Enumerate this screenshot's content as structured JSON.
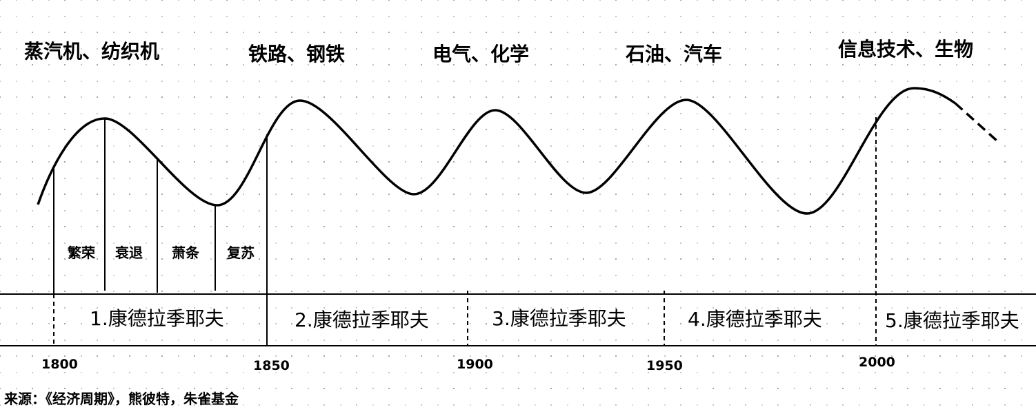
{
  "wave_labels": [
    "蒸汽机、纺织机",
    "铁路、钢铁",
    "电气、化学",
    "石油、汽车",
    "信息技术、生物"
  ],
  "phases": [
    "繁荣",
    "衰退",
    "萧条",
    "复苏"
  ],
  "cycles": [
    "1.康德拉季耶夫",
    "2.康德拉季耶夫",
    "3.康德拉季耶夫",
    "4.康德拉季耶夫",
    "5.康德拉季耶夫"
  ],
  "years": [
    "1800",
    "1850",
    "1900",
    "1950",
    "2000"
  ],
  "source": "来源：《经济周期》，熊彼特，朱雀基金"
}
